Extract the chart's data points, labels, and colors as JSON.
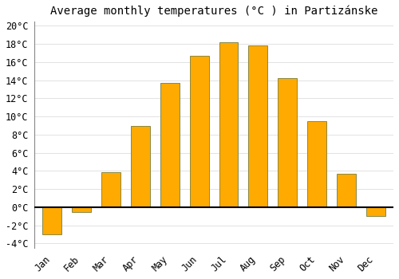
{
  "title": "Average monthly temperatures (°C ) in Partizánske",
  "months": [
    "Jan",
    "Feb",
    "Mar",
    "Apr",
    "May",
    "Jun",
    "Jul",
    "Aug",
    "Sep",
    "Oct",
    "Nov",
    "Dec"
  ],
  "temperatures": [
    -3.0,
    -0.5,
    3.9,
    9.0,
    13.7,
    16.7,
    18.2,
    17.8,
    14.2,
    9.5,
    3.7,
    -1.0
  ],
  "bar_color": "#FFAA00",
  "bar_edge_color": "#888844",
  "background_color": "#FFFFFF",
  "grid_color": "#DDDDDD",
  "ylim": [
    -4.5,
    20.5
  ],
  "yticks": [
    -4,
    -2,
    0,
    2,
    4,
    6,
    8,
    10,
    12,
    14,
    16,
    18,
    20
  ],
  "title_fontsize": 10,
  "tick_fontsize": 8.5,
  "zero_line_color": "#000000",
  "spine_color": "#888888"
}
